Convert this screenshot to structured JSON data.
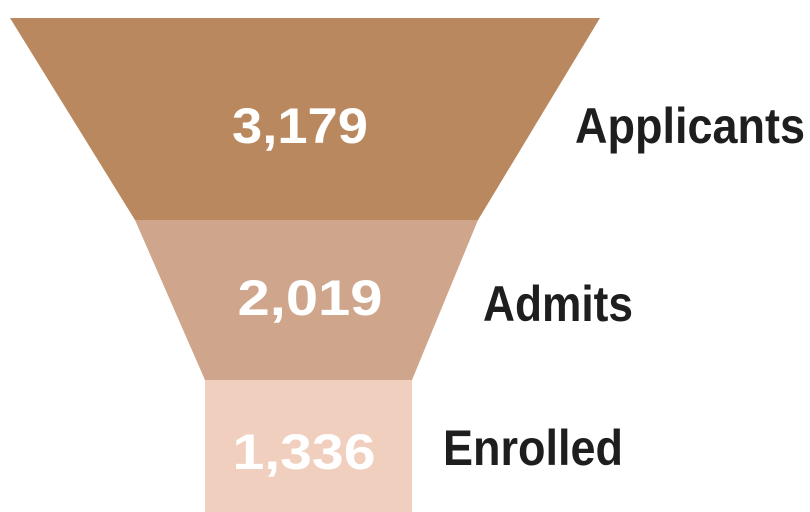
{
  "chart_data": {
    "type": "funnel",
    "categories": [
      "Applicants",
      "Admits",
      "Enrolled"
    ],
    "values": [
      3179,
      2019,
      1336
    ],
    "value_labels": [
      "3,179",
      "2,019",
      "1,336"
    ],
    "colors": [
      "#b9885f",
      "#cfa58b",
      "#f1cfbf"
    ]
  }
}
